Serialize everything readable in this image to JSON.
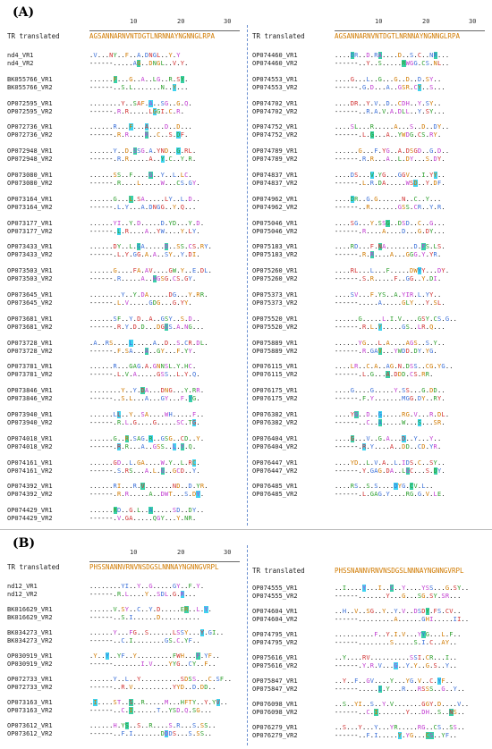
{
  "panelA": {
    "label": "(A)",
    "ruler": [
      "10",
      "20",
      "30"
    ],
    "header_name": "TR translated",
    "header_seq": "AGSANNARNVNTDGTLNRNNAYNGNNGLRPA",
    "left": [
      [
        "nd4_VR1",
        "nd4_VR2"
      ],
      [
        "BK055766_VR1",
        "BK055766_VR2"
      ],
      [
        "OP072595_VR1",
        "OP072595_VR2"
      ],
      [
        "OP072736_VR1",
        "OP072736_VR2"
      ],
      [
        "OP072948_VR1",
        "OP072948_VR2"
      ],
      [
        "OP073080_VR1",
        "OP073080_VR2"
      ],
      [
        "OP073164_VR1",
        "OP073164_VR2"
      ],
      [
        "OP073177_VR1",
        "OP073177_VR2"
      ],
      [
        "OP073433_VR1",
        "OP073433_VR2"
      ],
      [
        "OP073503_VR1",
        "OP073503_VR2"
      ],
      [
        "OP073645_VR1",
        "OP073645_VR2"
      ],
      [
        "OP073681_VR1",
        "OP073681_VR2"
      ],
      [
        "OP073728_VR1",
        "OP073728_VR2"
      ],
      [
        "OP073781_VR1",
        "OP073781_VR2"
      ],
      [
        "OP073846_VR1",
        "OP073846_VR2"
      ],
      [
        "OP073940_VR1",
        "OP073940_VR2"
      ],
      [
        "OP074018_VR1",
        "OP074018_VR2"
      ],
      [
        "OP074161_VR1",
        "OP074161_VR2"
      ],
      [
        "OP074392_VR1",
        "OP074392_VR2"
      ],
      [
        "OP074429_VR1",
        "OP074429_VR2"
      ]
    ],
    "right": [
      [
        "OP074460_VR1",
        "OP074460_VR2"
      ],
      [
        "OP074553_VR1",
        "OP074553_VR2"
      ],
      [
        "OP074702_VR1",
        "OP074702_VR2"
      ],
      [
        "OP074752_VR1",
        "OP074752_VR2"
      ],
      [
        "OP074789_VR1",
        "OP074789_VR2"
      ],
      [
        "OP074837_VR1",
        "OP074837_VR2"
      ],
      [
        "OP074962_VR1",
        "OP074962_VR2"
      ],
      [
        "OP075046_VR1",
        "OP075046_VR2"
      ],
      [
        "OP075183_VR1",
        "OP075183_VR2"
      ],
      [
        "OP075260_VR1",
        "OP075260_VR2"
      ],
      [
        "OP075373_VR1",
        "OP075373_VR2"
      ],
      [
        "OP075520_VR1",
        "OP075520_VR2"
      ],
      [
        "OP075889_VR1",
        "OP075889_VR2"
      ],
      [
        "OP076115_VR1",
        "OP076115_VR2"
      ],
      [
        "OP076175_VR1",
        "OP076175_VR2"
      ],
      [
        "OP076382_VR1",
        "OP076382_VR2"
      ],
      [
        "OP076404_VR1",
        "OP076404_VR2"
      ],
      [
        "OP076447_VR1",
        "OP076447_VR2"
      ],
      [
        "OP076485_VR1",
        "OP076485_VR2"
      ]
    ]
  },
  "panelB": {
    "label": "(B)",
    "ruler": [
      "10",
      "20",
      "30"
    ],
    "header_name": "TR translated",
    "header_seq": "PHSSNANNVRNVNSDGSLNNNAYNGNNGVRPL",
    "left": [
      [
        "nd12_VR1",
        "nd12_VR2"
      ],
      [
        "BK016629_VR1",
        "BK016629_VR2"
      ],
      [
        "BK034273_VR1",
        "BK034273_VR2"
      ],
      [
        "OP030919_VR1",
        "OP030919_VR2"
      ],
      [
        "OP072733_VR1",
        "OP072733_VR2"
      ],
      [
        "OP073163_VR1",
        "OP073163_VR2"
      ],
      [
        "OP073612_VR1",
        "OP073612_VR2"
      ]
    ],
    "right": [
      [
        "OP074555_VR1",
        "OP074555_VR2"
      ],
      [
        "OP074604_VR1",
        "OP074604_VR2"
      ],
      [
        "OP074795_VR1",
        "OP074795_VR2"
      ],
      [
        "OP075616_VR1",
        "OP075616_VR2"
      ],
      [
        "OP075847_VR1",
        "OP075847_VR2"
      ],
      [
        "OP076098_VR1",
        "OP076098_VR2"
      ],
      [
        "OP076279_VR1",
        "OP076279_VR2"
      ]
    ]
  },
  "seqs": {
    "A_left": [
      [
        ".V...NY..F..A.DNGL..Y.Y",
        "------.....AG..DNGL..V.Y."
      ],
      [
        "......F...G..A..LG..R.SY.",
        "------..S.L.......N..Y..."
      ],
      [
        "........Y..SAF.A..SG..G.Q.",
        "------.R.R.....LGGI.C.R."
      ],
      [
        "......R...F...A....D..D...",
        "------.R.R....R..C..S.DF."
      ],
      [
        "......Y..D.SSG.A.YND..G.RL.",
        "------.R.R.....A..Y.C..Y.R."
      ],
      [
        "......SS..F....G..Y..L.LC.",
        "------.R....L.....W...CS.GY."
      ],
      [
        "......G...L.SA.....LY..L.D..",
        "------.L.Y...A.DNGG..Y.Q..."
      ],
      [
        "......YI..Y.D.....D.YD...Y.D.",
        "------.L.R....A..YW....Y.LY."
      ],
      [
        "......DY..L.GA.....D..SS.CS.RY.",
        "------.L.Y.GG.A.A..SY..Y.DI."
      ],
      [
        "......G....FA.AV....GW.Y..E.DL.",
        "------.R.....A..HGSG.CS.GY."
      ],
      [
        "........Y..Y.DA.....DG...Y.RR.",
        "------.L.V.....GDG...G.YY."
      ],
      [
        "......SF..Y.D..A..GSY..S.D..",
        "------.R.Y.D.D...DGSS.A.NG..."
      ],
      [
        ".A..RS....L.....A..D..S.CR.DL.",
        "------.F.SA...A..GY...F.YY."
      ],
      [
        "......R...GAG.A.GNNSL.Y.HC.",
        "------.L.V.A.....GSS..L.Y.Q."
      ],
      [
        "........Y..Y.DA...DNG...Y.RR.",
        "------..S.L...A...GY...F.YG."
      ],
      [
        "......LL..Y..SA....WH.....F..",
        "------.R.L.G....G.....SC.TG."
      ],
      [
        "......G..R.SAG.R..GSG..CD..Y.",
        "------.R.R...A..GSS..L.Y.Q."
      ],
      [
        "......GD..L.GA....W.Y..L.RC.",
        "------.S.RS...A.L.G..GCD..Y."
      ],
      [
        "......RI...R.V.......ND..D.YR.",
        "------.R.R.....A..DWT...S.DY."
      ],
      [
        "......RD..G.L..A.....SD..DY..",
        "------.V.GA.....QGY...Y.NR."
      ]
    ],
    "A_right": [
      [
        "....DR..D.RA....D..S.C..NR...",
        "------..Y..S.....RWGG.CS.NL.."
      ],
      [
        "....G...L..G...G..D..D.SY..",
        "------.G.D...A..GSR.CY..S..."
      ],
      [
        "....DR..Y.V..D..CDH..Y.SY..",
        "------..R.A.V.A.DLL..Y.SY..."
      ],
      [
        "....SL...R.....A...S..D..DY..",
        "------.L.G...A..YWDG.CS.RY."
      ],
      [
        "......G...F.YG..A.DSGD..G.D..",
        "------.R.R...A..L.DY...S.DY."
      ],
      [
        "....DS...V.YG...GGV...I.YY..",
        "------.L.R.DA.....WSD..Y.DF."
      ],
      [
        "....DR..G.G......N..C..Y...",
        "------..R.......GSS.CR..Y.R."
      ],
      [
        "....SG...Y.SSG..DSD..C..G...",
        "------.R....A....D...G.DY..."
      ],
      [
        "....RD...F.NA.......D.FS.LS.",
        "------.R.R....A...GGG.Y.YR."
      ],
      [
        "....RL...L...F.....DWYY...DY.",
        "------.S.R.....F..GG..Y.DI."
      ],
      [
        "....SV...F.YS..A.YIR.L.YY..",
        "------.....A.....GLY...Y.SL."
      ],
      [
        "......G.....L.I.V....GSY.CS.G..",
        "------.R.L.Y.....GS..LR.Q..."
      ],
      [
        "......YG...L.A....AGS..S.Y..",
        "------.R.GAV...YWDD.DY.YG."
      ],
      [
        "....LR..C.A..AG.N.DSS..CG.YG..",
        "------.L.G...A.DDD.CS.RR."
      ],
      [
        "....G....G.....Y.SS...G.DD..",
        "------.F.Y.......MGG.DY..RY."
      ],
      [
        "....YG..D..G.....RG.V...R.DL.",
        "------..C..A.....W...S...SR."
      ],
      [
        "....G...V..G.A...D..Y...Y..",
        "------.R.Y....A..DD..CD.YR."
      ],
      [
        "....YD..L.V.A..L.IDS.C..SY..",
        "------.Y.GAG.DA..LGC...S.DY."
      ],
      [
        "....RS..S.S....DYG.CV.L..",
        "------.L.GAG.Y....RG.G.V.LE."
      ]
    ],
    "B_left": [
      [
        "........YI..Y..G.....GY..F.Y.",
        "------.R.L....Y..SDL.G.R..."
      ],
      [
        "......V.SY..C..Y.D.....ER..L.Y.",
        "------..S.I......D.........."
      ],
      [
        "......Y...FG..S......LSSY...Y.GI..",
        "------..C.I........GS.C.YF.."
      ],
      [
        ".Y..Y..YF..Y.........FWH...F.YF..",
        "------.......I.V....YYG..CY..F.."
      ],
      [
        "......Y..L..Y..........SDSS...C.SF..",
        "------..R.V..........YYD..D.DD.."
      ],
      [
        ".I....ST..S..R.....M...HFTY..Y.YV..",
        "------..C.I......T..YSD.Q.SG..."
      ],
      [
        "......H.YS..S..R....S.R...S.SS..",
        "------..F.I.......DDDS...S.SS.."
      ]
    ],
    "B_right": [
      [
        "..I....Y...I..C..Y....YSS...G.SY..",
        "------.......Y...G...SG.SY.SR..."
      ],
      [
        "..H..V..SG..Y..Y.V..DSDY.FS.CV..",
        "------.........A......GHI.....II.."
      ],
      [
        "..........F..Y.I.V...YYG...L.F..",
        "------........S.....S.I.C..AY.."
      ],
      [
        "..Y....RV..........SSI.CR...I..",
        "------.Y.R.V...G..Y.Y..G.S..Y.."
      ],
      [
        "..Y..F..GV....Y...YG.V..C.YF..",
        "------.....I.Y...R...RSSS..G..Y.."
      ],
      [
        "..S..YI..S..Y.V.......GGY.D....V..",
        "------..C.I.......Y...DH..S..NS.."
      ],
      [
        "..S...Y...Y...YR.....RG..CS..SS..",
        "------..F.I.....Y.YG...CS..YF.."
      ]
    ]
  }
}
